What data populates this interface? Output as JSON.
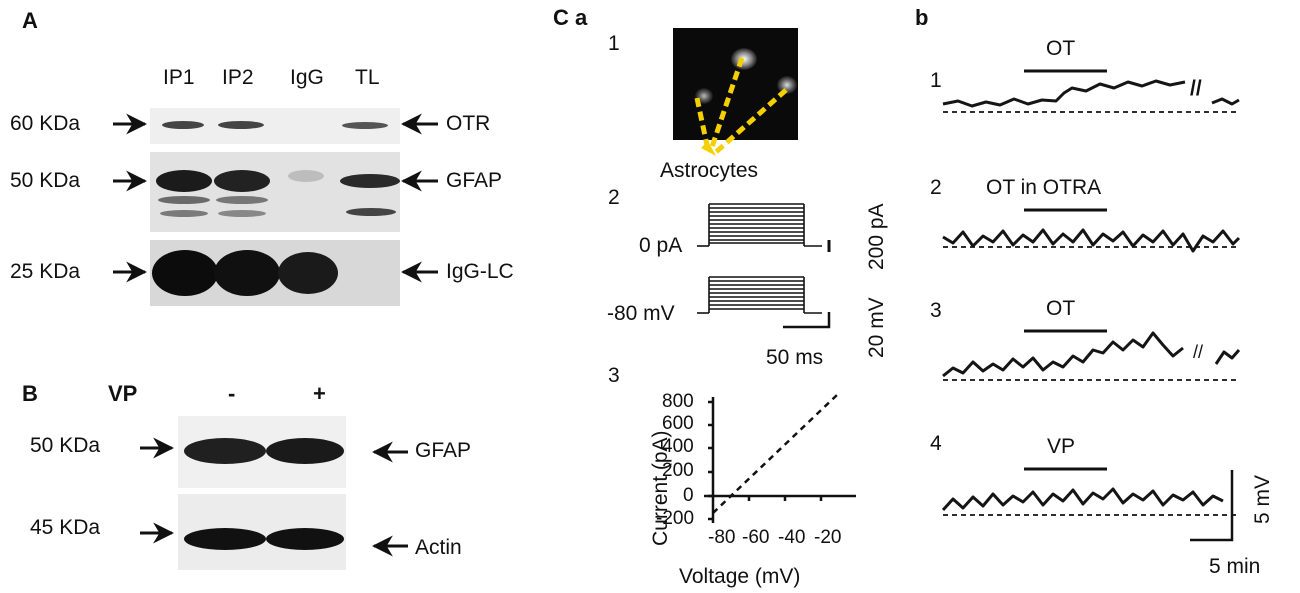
{
  "panel_A": {
    "letter": "A",
    "lanes": [
      "IP1",
      "IP2",
      "IgG",
      "TL"
    ],
    "markers": [
      "60 KDa",
      "50 KDa",
      "25 KDa"
    ],
    "proteins": [
      "OTR",
      "GFAP",
      "IgG-LC"
    ]
  },
  "panel_B": {
    "letter": "B",
    "treatment_label": "VP",
    "conditions": [
      "-",
      "+"
    ],
    "markers": [
      "50 KDa",
      "45 KDa"
    ],
    "proteins": [
      "GFAP",
      "Actin"
    ]
  },
  "panel_C": {
    "letter": "C",
    "sub_a": "a",
    "sub_b": "b",
    "a_items": [
      "1",
      "2",
      "3"
    ],
    "image_label": "Astrocytes",
    "clamp": {
      "current_label": "0 pA",
      "voltage_label": "-80 mV",
      "scale_current": "200 pA",
      "scale_voltage": "20 mV",
      "scale_time": "50 ms"
    },
    "iv_plot": {
      "xlabel": "Voltage (mV)",
      "ylabel": "Current (pA)",
      "xticks": [
        "-80",
        "-60",
        "-40",
        "-20"
      ],
      "yticks": [
        "800",
        "600",
        "400",
        "200",
        "0",
        "-200"
      ]
    },
    "traces": [
      {
        "num": "1",
        "label": "OT"
      },
      {
        "num": "2",
        "label": "OT in OTRA"
      },
      {
        "num": "3",
        "label": "OT"
      },
      {
        "num": "4",
        "label": "VP"
      }
    ],
    "scale_mV": "5 mV",
    "scale_min": "5 min",
    "break_mark": "//"
  }
}
